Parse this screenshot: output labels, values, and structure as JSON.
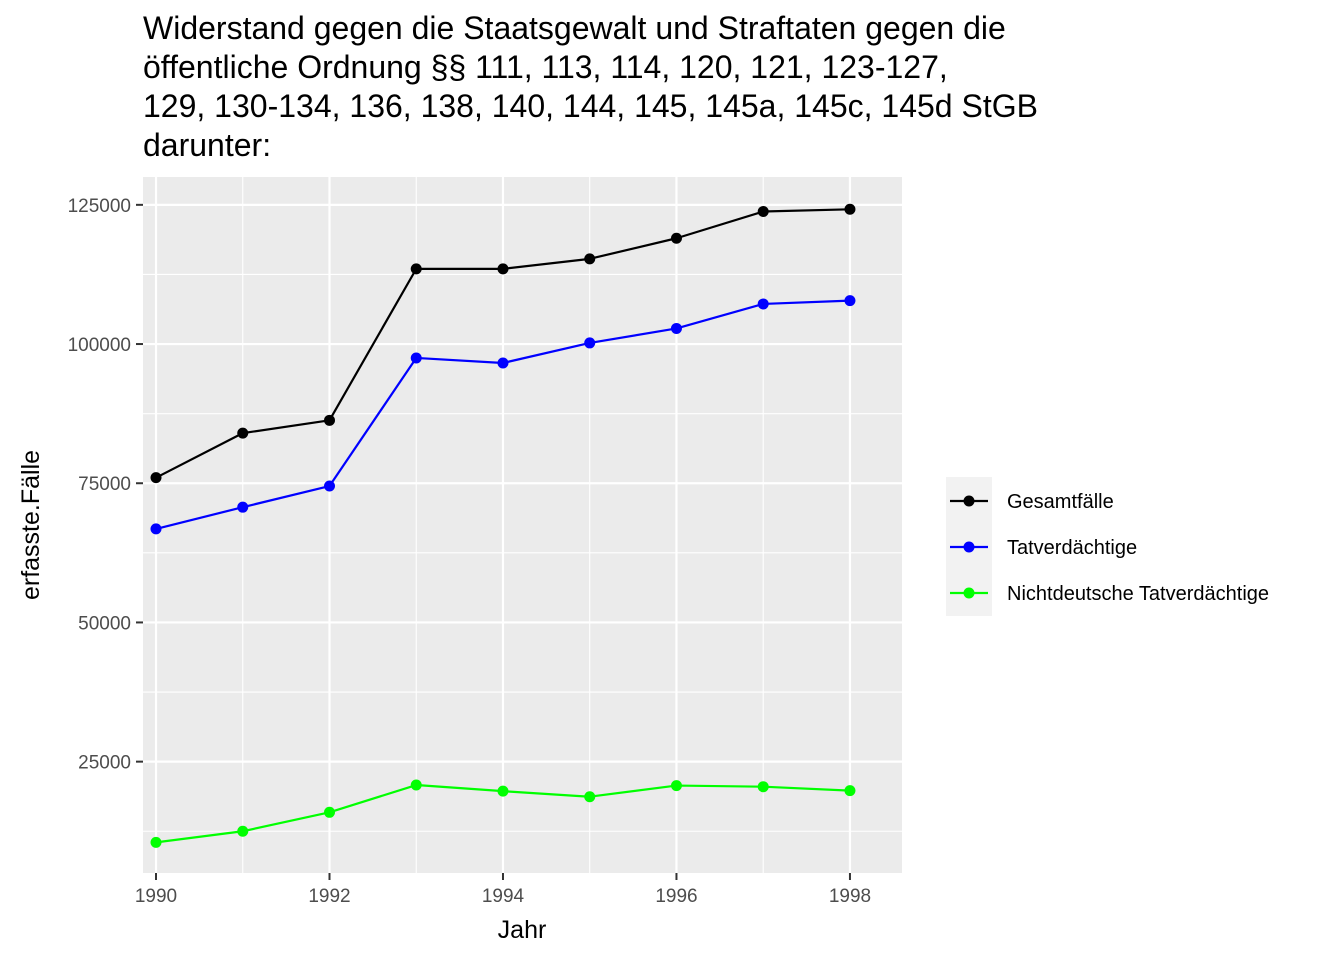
{
  "chart_data": {
    "type": "line",
    "title_lines": [
      "Widerstand gegen die Staatsgewalt und Straftaten gegen die",
      "öffentliche Ordnung §§ 111, 113, 114, 120, 121, 123-127,",
      "129, 130-134, 136, 138, 140, 144, 145, 145a, 145c, 145d StGB",
      "darunter:"
    ],
    "xlabel": "Jahr",
    "ylabel": "erfasste.Fälle",
    "x": [
      1990,
      1991,
      1992,
      1993,
      1994,
      1995,
      1996,
      1997,
      1998
    ],
    "xlim": [
      1989.85,
      1998.6
    ],
    "ylim": [
      5000,
      130000
    ],
    "x_ticks": [
      1990,
      1992,
      1994,
      1996,
      1998
    ],
    "y_ticks": [
      25000,
      50000,
      75000,
      100000,
      125000
    ],
    "grid": true,
    "legend_position": "right",
    "series": [
      {
        "name": "Gesamtfälle",
        "color": "#000000",
        "values": [
          76000,
          84000,
          86300,
          113500,
          113500,
          115300,
          119000,
          123800,
          124200
        ]
      },
      {
        "name": "Tatverdächtige",
        "color": "#0000ff",
        "values": [
          66800,
          70700,
          74500,
          97500,
          96600,
          100200,
          102800,
          107200,
          107800
        ]
      },
      {
        "name": "Nichtdeutsche Tatverdächtige",
        "color": "#00ff00",
        "values": [
          10500,
          12500,
          15900,
          20800,
          19700,
          18700,
          20700,
          20500,
          19800
        ]
      }
    ]
  }
}
